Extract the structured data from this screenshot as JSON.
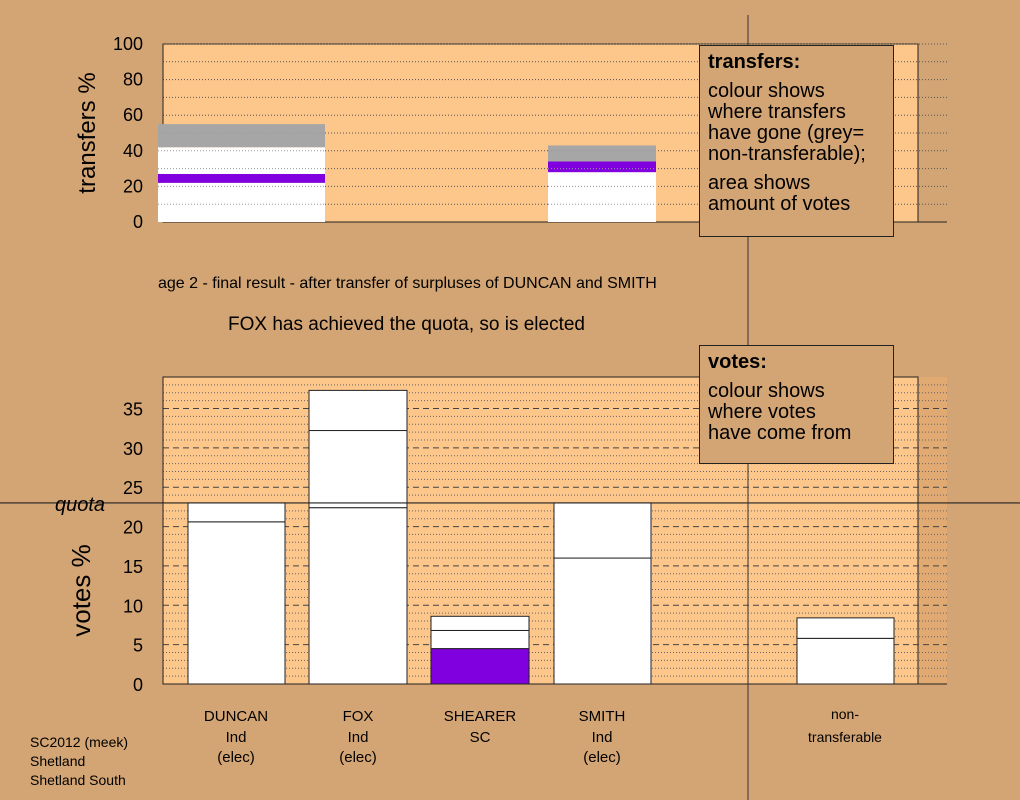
{
  "subtitle": "age 2 - final result - after transfer of surpluses of DUNCAN and SMITH",
  "headline": "FOX has achieved the quota, so is elected",
  "legend_transfers": {
    "title": "transfers:",
    "lines": [
      "colour shows",
      "where transfers",
      "have gone (grey=",
      "non-transferable);",
      "area shows",
      "amount of votes"
    ]
  },
  "legend_votes": {
    "title": "votes:",
    "lines": [
      "colour shows",
      "where votes",
      "have come from"
    ]
  },
  "footer": {
    "line1": "SC2012 (meek)",
    "line2": "Shetland",
    "line3": "Shetland South"
  },
  "colors": {
    "background": "#d4a574",
    "plot_area": "#fdc68a",
    "white": "#ffffff",
    "purple": "#8000e0",
    "grey": "#a6a6a6"
  },
  "chart_data": [
    {
      "type": "bar",
      "name": "transfers",
      "ylabel": "transfers %",
      "ylim": [
        0,
        100
      ],
      "yticks": [
        0,
        20,
        40,
        60,
        80,
        100
      ],
      "bars": [
        {
          "source": "DUNCAN",
          "segments": [
            {
              "from": 0,
              "to": 22,
              "color": "white"
            },
            {
              "from": 22,
              "to": 27,
              "color": "purple"
            },
            {
              "from": 27,
              "to": 42,
              "color": "white"
            },
            {
              "from": 42,
              "to": 55,
              "color": "grey"
            }
          ]
        },
        {
          "source": "SMITH",
          "segments": [
            {
              "from": 0,
              "to": 28,
              "color": "white"
            },
            {
              "from": 28,
              "to": 34,
              "color": "purple"
            },
            {
              "from": 34,
              "to": 43,
              "color": "grey"
            }
          ]
        }
      ]
    },
    {
      "type": "bar",
      "name": "votes",
      "ylabel": "votes %",
      "ylim": [
        0,
        39
      ],
      "yticks": [
        0,
        5,
        10,
        15,
        20,
        25,
        30,
        35
      ],
      "quota": 23,
      "quota_label": "quota",
      "candidates": [
        {
          "name": "DUNCAN",
          "party": "Ind",
          "status": "(elec)",
          "segments": [
            {
              "from": 0,
              "to": 20.6,
              "color": "white"
            },
            {
              "from": 20.6,
              "to": 23,
              "color": "white"
            }
          ]
        },
        {
          "name": "FOX",
          "party": "Ind",
          "status": "(elec)",
          "segments": [
            {
              "from": 0,
              "to": 22.4,
              "color": "white"
            },
            {
              "from": 22.4,
              "to": 32.2,
              "color": "white"
            },
            {
              "from": 32.2,
              "to": 37.3,
              "color": "white"
            }
          ]
        },
        {
          "name": "SHEARER",
          "party": "SC",
          "status": "",
          "segments": [
            {
              "from": 0,
              "to": 4.5,
              "color": "purple"
            },
            {
              "from": 4.5,
              "to": 6.8,
              "color": "white"
            },
            {
              "from": 6.8,
              "to": 8.6,
              "color": "white"
            }
          ]
        },
        {
          "name": "SMITH",
          "party": "Ind",
          "status": "(elec)",
          "segments": [
            {
              "from": 0,
              "to": 16,
              "color": "white"
            },
            {
              "from": 16,
              "to": 23,
              "color": "white"
            }
          ]
        }
      ],
      "nontransferable": {
        "label_line1": "non-",
        "label_line2": "transferable",
        "segments": [
          {
            "from": 0,
            "to": 5.8,
            "color": "white"
          },
          {
            "from": 5.8,
            "to": 8.4,
            "color": "white"
          }
        ]
      }
    }
  ]
}
